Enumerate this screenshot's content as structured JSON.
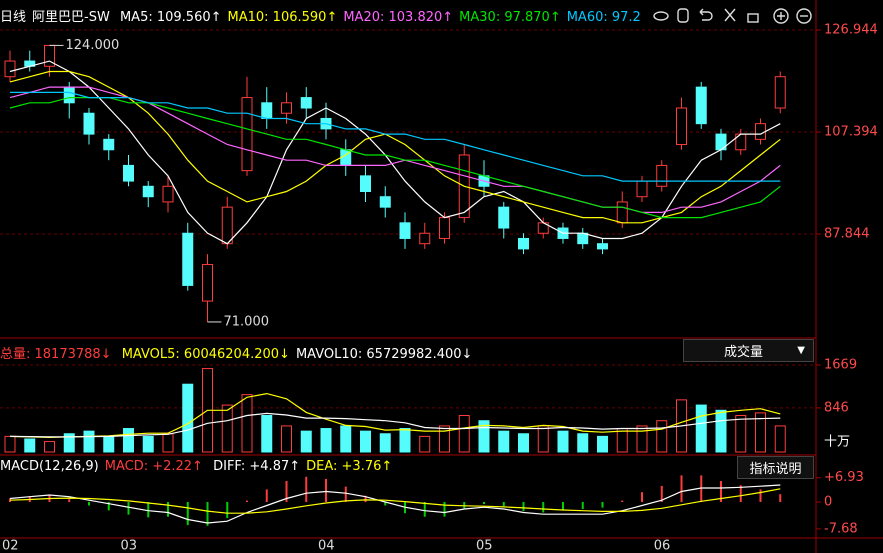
{
  "header": {
    "period": "日线",
    "name": "阿里巴巴-SW"
  },
  "chart_data": [
    {
      "type": "candlestick",
      "categories": [
        "02",
        null,
        null,
        null,
        null,
        null,
        "03",
        null,
        null,
        null,
        null,
        null,
        null,
        null,
        null,
        null,
        "04",
        null,
        null,
        null,
        null,
        null,
        null,
        null,
        "05",
        null,
        null,
        null,
        null,
        null,
        null,
        null,
        null,
        "06",
        null,
        null,
        null,
        null,
        null,
        null
      ],
      "open": [
        118,
        121,
        120,
        116,
        111,
        106,
        101,
        97,
        94,
        88,
        75,
        86,
        100,
        113,
        111,
        114,
        110,
        104,
        99,
        95,
        90,
        86,
        87,
        91,
        99,
        93,
        87,
        88,
        89,
        88,
        86,
        90,
        95,
        97,
        105,
        116,
        107,
        104,
        106,
        112
      ],
      "close": [
        121,
        120,
        124,
        113,
        107,
        104,
        98,
        95,
        97,
        78,
        82,
        93,
        114,
        110,
        113,
        112,
        108,
        101,
        96,
        93,
        87,
        88,
        91,
        103,
        97,
        89,
        85,
        90,
        87,
        86,
        85,
        94,
        98,
        101,
        112,
        109,
        104,
        107,
        109,
        118
      ],
      "high": [
        123,
        123,
        124,
        117,
        112,
        107,
        103,
        98,
        99,
        90,
        84,
        95,
        118,
        116,
        115,
        116,
        113,
        106,
        101,
        97,
        92,
        90,
        92,
        105,
        102,
        94,
        88,
        91,
        90,
        89,
        87,
        96,
        99,
        102,
        114,
        117,
        108,
        108,
        110,
        119
      ],
      "low": [
        117,
        119,
        118,
        110,
        105,
        102,
        97,
        93,
        92,
        77,
        71,
        85,
        99,
        108,
        109,
        110,
        106,
        99,
        94,
        91,
        85,
        85,
        86,
        90,
        95,
        87,
        84,
        87,
        86,
        85,
        84,
        89,
        94,
        96,
        104,
        108,
        102,
        103,
        105,
        111
      ],
      "up_color": "#ff3c3c",
      "down_color": "#54fcfc",
      "series": [
        {
          "name": "MA5: 109.560↑",
          "color": "#ffffff",
          "values": [
            119,
            120,
            121,
            119,
            116,
            112,
            108,
            103,
            99,
            92,
            88,
            86,
            90,
            95,
            104,
            110,
            112,
            110,
            107,
            103,
            98,
            94,
            91,
            92,
            95,
            96,
            94,
            90,
            88,
            88,
            87,
            87,
            88,
            91,
            97,
            102,
            104,
            107,
            107,
            109
          ]
        },
        {
          "name": "MA10: 106.590↑",
          "color": "#ffff00",
          "values": [
            117,
            118,
            119,
            119,
            118,
            116,
            114,
            111,
            107,
            102,
            98,
            96,
            94,
            95,
            96,
            98,
            101,
            103,
            106,
            107,
            105,
            102,
            99,
            97,
            96,
            95,
            94,
            93,
            92,
            91,
            91,
            90,
            90,
            91,
            92,
            95,
            97,
            100,
            103,
            106
          ]
        },
        {
          "name": "MA20: 103.820↑",
          "color": "#ff66ff",
          "values": [
            114,
            115,
            116,
            116,
            116,
            115,
            114,
            113,
            111,
            109,
            107,
            105,
            104,
            103,
            102,
            102,
            101,
            101,
            101,
            101,
            102,
            101,
            100,
            99,
            98,
            97,
            97,
            96,
            95,
            94,
            93,
            93,
            92,
            92,
            93,
            93,
            94,
            96,
            98,
            101
          ]
        },
        {
          "name": "MA30: 97.870↑",
          "color": "#00e600",
          "values": [
            112,
            113,
            113,
            114,
            114,
            114,
            113,
            113,
            112,
            111,
            110,
            109,
            108,
            107,
            106,
            106,
            105,
            104,
            103,
            103,
            102,
            102,
            101,
            100,
            99,
            98,
            97,
            96,
            95,
            94,
            93,
            93,
            92,
            91,
            91,
            91,
            92,
            93,
            94,
            97
          ]
        },
        {
          "name": "MA60: 97.2",
          "color": "#00c8ff",
          "values": [
            115,
            115,
            115,
            115,
            114,
            114,
            114,
            113,
            113,
            112,
            112,
            111,
            111,
            110,
            110,
            109,
            109,
            108,
            108,
            107,
            107,
            106,
            106,
            105,
            104,
            103,
            102,
            101,
            100,
            99,
            99,
            98,
            98,
            98,
            98,
            98,
            98,
            98,
            98,
            98
          ]
        }
      ],
      "ylim": [
        68.5,
        132.7
      ],
      "yticks": [
        87.844,
        107.394,
        126.944
      ],
      "grid": true,
      "annotations": [
        "124.000",
        "71.000"
      ]
    },
    {
      "type": "bar",
      "name": "总量: 18173788↓",
      "color": "#ff3c3c",
      "values": [
        300,
        250,
        200,
        350,
        400,
        300,
        450,
        300,
        350,
        1300,
        1600,
        900,
        1100,
        700,
        500,
        400,
        450,
        500,
        400,
        350,
        450,
        300,
        500,
        700,
        600,
        400,
        350,
        500,
        400,
        350,
        300,
        450,
        500,
        600,
        1000,
        900,
        800,
        700,
        750,
        500
      ],
      "series": [
        {
          "name": "MAVOL5: 60046204.200↓",
          "color": "#ffff00",
          "values": [
            300,
            290,
            280,
            290,
            300,
            310,
            340,
            360,
            360,
            540,
            800,
            800,
            1050,
            1120,
            1020,
            760,
            630,
            510,
            490,
            420,
            430,
            400,
            400,
            460,
            510,
            500,
            470,
            510,
            490,
            400,
            380,
            400,
            400,
            440,
            570,
            690,
            760,
            800,
            830,
            730
          ]
        },
        {
          "name": "MAVOL10: 65729982.400↓",
          "color": "#ffffff",
          "values": [
            300,
            295,
            290,
            290,
            295,
            300,
            315,
            330,
            340,
            420,
            550,
            600,
            700,
            740,
            710,
            650,
            650,
            640,
            620,
            600,
            560,
            470,
            450,
            450,
            470,
            460,
            450,
            450,
            470,
            460,
            440,
            450,
            450,
            460,
            500,
            550,
            600,
            630,
            640,
            650
          ]
        }
      ],
      "ylim": [
        0,
        1822
      ],
      "yticks": [
        846,
        1669
      ],
      "unit": "十万",
      "selector": "成交量"
    },
    {
      "type": "macd",
      "title": "MACD(12,26,9)",
      "name": "MACD: +2.22↑",
      "up_color": "#ff3c3c",
      "down_color": "#00d000",
      "values": [
        1,
        1.6,
        2,
        0.8,
        -1,
        -2.4,
        -3.6,
        -4.4,
        -4.2,
        -6.6,
        -6.8,
        -4.6,
        0.4,
        3.6,
        6,
        7.2,
        6.6,
        4.4,
        1.8,
        -1,
        -3.2,
        -4.2,
        -4.2,
        -1.8,
        -0.6,
        -1.2,
        -2.6,
        -3,
        -2.4,
        -2,
        -1.6,
        0.4,
        2.8,
        4.6,
        7.6,
        7.6,
        6,
        4.8,
        3.6,
        2.22
      ],
      "series": [
        {
          "name": "DIFF: +4.87↑",
          "color": "#ffffff",
          "values": [
            1,
            1.5,
            2,
            1.5,
            0.5,
            -0.5,
            -1.5,
            -2.5,
            -3,
            -5,
            -6,
            -5.5,
            -3,
            -1,
            1,
            2.5,
            3,
            2.5,
            1.5,
            0,
            -1.5,
            -2.5,
            -3,
            -2,
            -1.5,
            -2,
            -3,
            -3.5,
            -3.5,
            -3.5,
            -3.5,
            -2.5,
            -1,
            0.5,
            3,
            4,
            4,
            4.2,
            4.5,
            4.87
          ]
        },
        {
          "name": "DEA: +3.76↑",
          "color": "#ffff00",
          "values": [
            0.5,
            0.7,
            1,
            1.1,
            1,
            0.7,
            0.3,
            -0.3,
            -0.9,
            -1.7,
            -2.6,
            -3.2,
            -3.2,
            -2.8,
            -2,
            -1.1,
            -0.3,
            0.3,
            0.6,
            0.5,
            0.1,
            -0.4,
            -0.9,
            -1.1,
            -1.2,
            -1.4,
            -1.7,
            -2,
            -2.3,
            -2.5,
            -2.7,
            -2.7,
            -2.4,
            -1.8,
            -0.8,
            0.2,
            1,
            1.8,
            2.7,
            3.76
          ]
        }
      ],
      "ylim": [
        -12.29,
        11.43
      ],
      "yticks": [
        {
          "value": 6.93,
          "label": "+6.93"
        },
        0,
        -7.68
      ],
      "button": "指标说明"
    }
  ]
}
